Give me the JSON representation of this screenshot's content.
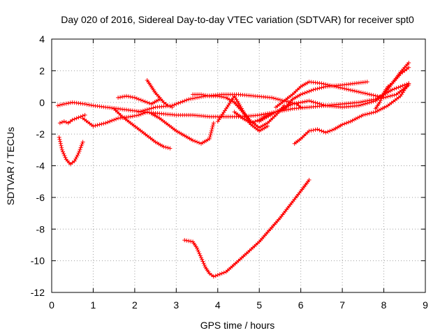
{
  "chart_data": {
    "type": "scatter",
    "title": "Day 020 of 2016, Sidereal Day-to-day VTEC variation (SDTVAR) for receiver spt0",
    "xlabel": "GPS time / hours",
    "ylabel": "SDTVAR / TECUs",
    "xlim": [
      0,
      9
    ],
    "ylim": [
      -12,
      4
    ],
    "xticks": [
      0,
      1,
      2,
      3,
      4,
      5,
      6,
      7,
      8,
      9
    ],
    "yticks": [
      -12,
      -10,
      -8,
      -6,
      -4,
      -2,
      0,
      2,
      4
    ],
    "grid": true,
    "marker": "+",
    "color": "#ff0000",
    "series": [
      {
        "name": "s1",
        "x": [
          0.15,
          0.3,
          0.5,
          0.8,
          1.0,
          1.3,
          1.6,
          1.9,
          2.2,
          2.6,
          3.0,
          3.4,
          3.8,
          4.2,
          4.6,
          5.0,
          5.4,
          5.8,
          6.2,
          6.6,
          7.0,
          7.4,
          7.8,
          8.0,
          8.2,
          8.4,
          8.6
        ],
        "y": [
          -0.2,
          -0.1,
          0.0,
          -0.1,
          -0.2,
          -0.3,
          -0.4,
          -0.5,
          -0.6,
          -0.7,
          -0.8,
          -0.8,
          -0.9,
          -0.9,
          -0.9,
          -0.8,
          -0.6,
          -0.4,
          -0.3,
          -0.2,
          -0.1,
          0.0,
          0.2,
          0.5,
          0.8,
          1.0,
          1.2
        ]
      },
      {
        "name": "s2",
        "x": [
          0.2,
          0.3,
          0.4,
          0.5,
          0.6,
          0.7,
          0.8
        ],
        "y": [
          -1.3,
          -1.2,
          -1.3,
          -1.1,
          -1.0,
          -0.9,
          -0.8
        ]
      },
      {
        "name": "s3",
        "x": [
          0.18,
          0.25,
          0.35,
          0.45,
          0.55,
          0.65,
          0.75
        ],
        "y": [
          -2.2,
          -3.0,
          -3.6,
          -3.9,
          -3.7,
          -3.2,
          -2.5
        ]
      },
      {
        "name": "s4",
        "x": [
          0.75,
          1.0,
          1.3,
          1.6,
          1.9,
          2.1,
          2.3
        ],
        "y": [
          -1.0,
          -1.5,
          -1.3,
          -1.0,
          -0.9,
          -0.8,
          -0.6
        ]
      },
      {
        "name": "s5",
        "x": [
          1.5,
          1.7,
          1.9,
          2.1,
          2.3,
          2.5,
          2.7,
          2.85
        ],
        "y": [
          -0.4,
          -0.9,
          -1.3,
          -1.7,
          -2.1,
          -2.5,
          -2.8,
          -2.9
        ]
      },
      {
        "name": "s6",
        "x": [
          1.6,
          1.8,
          2.0,
          2.2,
          2.4,
          2.6
        ],
        "y": [
          0.3,
          0.4,
          0.3,
          0.1,
          -0.1,
          0.2
        ]
      },
      {
        "name": "s7",
        "x": [
          2.3,
          2.4,
          2.5,
          2.6,
          2.7,
          2.8,
          2.9
        ],
        "y": [
          1.4,
          1.0,
          0.6,
          0.3,
          0.0,
          -0.2,
          -0.3
        ]
      },
      {
        "name": "s8",
        "x": [
          2.1,
          2.5,
          2.9,
          3.3,
          3.7,
          4.1,
          4.5,
          4.9,
          5.3,
          5.6,
          5.9,
          6.0
        ],
        "y": [
          -0.6,
          -0.3,
          -0.2,
          0.2,
          0.4,
          0.5,
          0.5,
          0.4,
          0.3,
          0.1,
          -0.1,
          -0.3
        ]
      },
      {
        "name": "s9",
        "x": [
          2.4,
          2.6,
          2.8,
          3.0,
          3.2,
          3.4,
          3.6,
          3.8,
          3.9
        ],
        "y": [
          -0.7,
          -1.0,
          -1.4,
          -1.8,
          -2.1,
          -2.4,
          -2.6,
          -2.3,
          -1.3
        ]
      },
      {
        "name": "s10",
        "x": [
          3.4,
          3.6,
          3.8,
          4.0,
          4.2,
          4.4,
          4.6,
          4.8,
          5.0,
          5.2,
          5.4,
          5.6
        ],
        "y": [
          0.5,
          0.5,
          0.4,
          0.4,
          0.3,
          0.0,
          -0.6,
          -1.2,
          -1.6,
          -1.3,
          -0.8,
          -0.2
        ]
      },
      {
        "name": "s11",
        "x": [
          4.0,
          4.2,
          4.4,
          4.6,
          4.8,
          5.0,
          5.2
        ],
        "y": [
          -1.2,
          -0.4,
          0.4,
          -0.5,
          -1.4,
          -1.8,
          -1.5
        ]
      },
      {
        "name": "s12",
        "x": [
          4.4,
          4.6,
          4.8,
          5.0,
          5.2,
          5.4,
          5.6,
          5.8,
          6.0,
          6.3,
          6.6,
          7.0,
          7.3,
          7.6
        ],
        "y": [
          -0.6,
          -1.0,
          -1.3,
          -1.1,
          -0.8,
          -0.6,
          -0.4,
          0.2,
          0.5,
          0.8,
          1.0,
          1.1,
          1.2,
          1.3
        ]
      },
      {
        "name": "s13",
        "x": [
          5.4,
          5.6,
          5.8,
          6.0,
          6.2,
          6.5,
          7.0,
          7.5,
          8.0,
          8.3,
          8.6
        ],
        "y": [
          -0.3,
          0.1,
          0.5,
          1.0,
          1.3,
          1.2,
          0.9,
          0.6,
          0.3,
          0.5,
          1.1
        ]
      },
      {
        "name": "s14",
        "x": [
          5.85,
          6.0,
          6.2,
          6.4,
          6.6,
          6.8,
          7.0,
          7.2,
          7.5,
          7.8,
          8.1,
          8.4,
          8.6
        ],
        "y": [
          -2.6,
          -2.3,
          -1.8,
          -1.7,
          -1.9,
          -1.7,
          -1.4,
          -1.2,
          -0.8,
          -0.6,
          -0.2,
          0.4,
          1.2
        ]
      },
      {
        "name": "s15",
        "x": [
          5.0,
          5.4,
          5.8,
          6.2,
          6.6,
          7.0,
          7.4,
          7.8,
          8.0,
          8.2,
          8.4,
          8.6
        ],
        "y": [
          -1.2,
          -0.6,
          -0.1,
          0.1,
          -0.2,
          -0.3,
          -0.2,
          0.1,
          0.5,
          1.2,
          1.9,
          2.5
        ]
      },
      {
        "name": "s16",
        "x": [
          7.8,
          7.9,
          8.0,
          8.1,
          8.2,
          8.3,
          8.4,
          8.5,
          8.6
        ],
        "y": [
          -0.4,
          0.0,
          0.6,
          1.0,
          1.2,
          1.5,
          1.8,
          2.0,
          2.2
        ]
      },
      {
        "name": "s17",
        "x": [
          3.2,
          3.4,
          3.5,
          3.6,
          3.7,
          3.8,
          3.9,
          4.0,
          4.2,
          4.5,
          5.0,
          5.5,
          6.0,
          6.2
        ],
        "y": [
          -8.7,
          -8.8,
          -9.2,
          -9.8,
          -10.4,
          -10.8,
          -11.0,
          -10.9,
          -10.7,
          -10.0,
          -8.8,
          -7.3,
          -5.6,
          -4.9
        ]
      }
    ]
  }
}
